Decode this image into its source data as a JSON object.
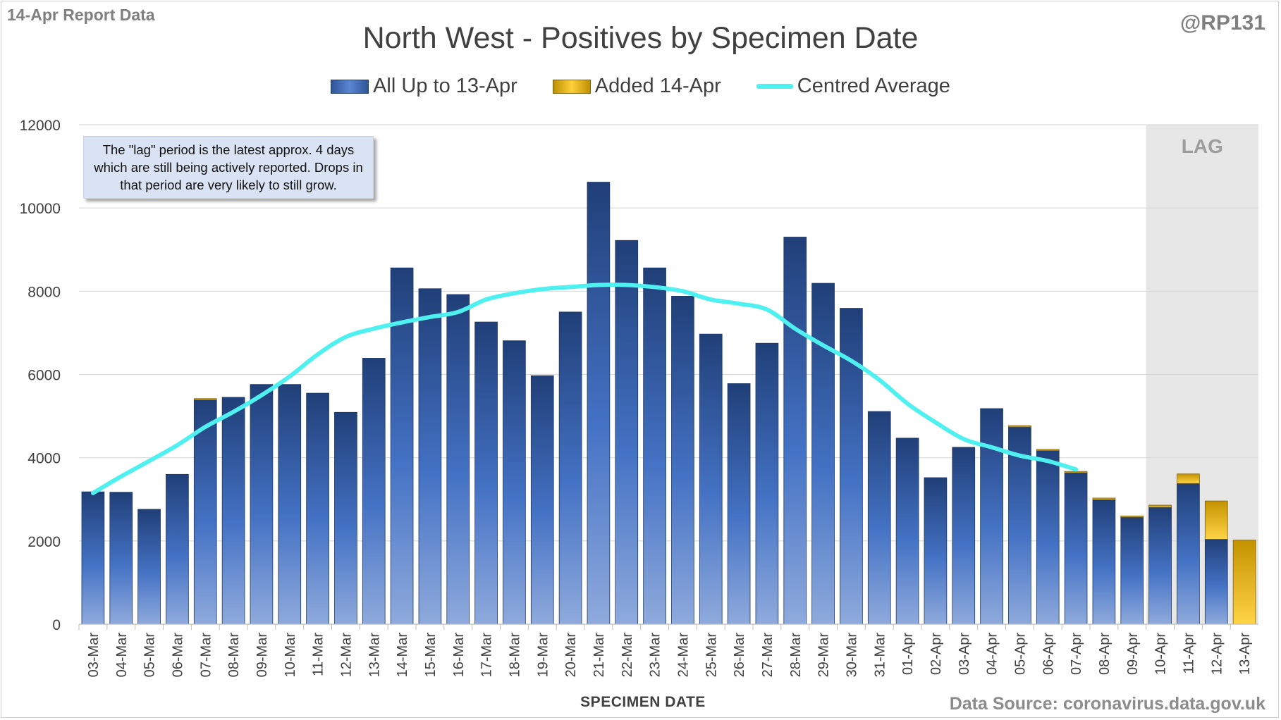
{
  "header": {
    "report_label": "14-Apr Report Data",
    "handle": "@RP131",
    "source": "Data Source: coronavirus.data.gov.uk"
  },
  "chart_data": {
    "type": "bar",
    "title": "North West - Positives by Specimen Date",
    "xlabel": "SPECIMEN DATE",
    "ylabel": "",
    "ylim": [
      0,
      12000
    ],
    "yticks": [
      0,
      2000,
      4000,
      6000,
      8000,
      10000,
      12000
    ],
    "grid": true,
    "legend_position": "top-center",
    "stacked": true,
    "lag_label": "LAG",
    "lag_categories": [
      "10-Apr",
      "11-Apr",
      "12-Apr",
      "13-Apr"
    ],
    "annotation": "The \"lag\" period is the latest approx. 4 days which are still being actively reported. Drops in that period are very likely to still grow.",
    "categories": [
      "03-Mar",
      "04-Mar",
      "05-Mar",
      "06-Mar",
      "07-Mar",
      "08-Mar",
      "09-Mar",
      "10-Mar",
      "11-Mar",
      "12-Mar",
      "13-Mar",
      "14-Mar",
      "15-Mar",
      "16-Mar",
      "17-Mar",
      "18-Mar",
      "19-Mar",
      "20-Mar",
      "21-Mar",
      "22-Mar",
      "23-Mar",
      "24-Mar",
      "25-Mar",
      "26-Mar",
      "27-Mar",
      "28-Mar",
      "29-Mar",
      "30-Mar",
      "31-Mar",
      "01-Apr",
      "02-Apr",
      "03-Apr",
      "04-Apr",
      "05-Apr",
      "06-Apr",
      "07-Apr",
      "08-Apr",
      "09-Apr",
      "10-Apr",
      "11-Apr",
      "12-Apr",
      "13-Apr"
    ],
    "series": [
      {
        "name": "All Up to 13-Apr",
        "color": "#2f5597",
        "values": [
          3180,
          3170,
          2760,
          3600,
          5390,
          5450,
          5760,
          5760,
          5550,
          5090,
          6390,
          8560,
          8060,
          7920,
          7260,
          6810,
          5970,
          7500,
          10620,
          9220,
          8560,
          7880,
          6970,
          5780,
          6750,
          9300,
          8190,
          7590,
          5110,
          4470,
          3520,
          4250,
          5180,
          4740,
          4170,
          3640,
          2990,
          2570,
          2810,
          3380,
          2040,
          0
        ]
      },
      {
        "name": "Added 14-Apr",
        "color": "#ffc000",
        "values": [
          0,
          0,
          0,
          0,
          30,
          0,
          0,
          0,
          0,
          0,
          0,
          0,
          0,
          0,
          0,
          0,
          0,
          0,
          0,
          0,
          0,
          0,
          0,
          0,
          0,
          0,
          0,
          0,
          0,
          0,
          0,
          0,
          0,
          30,
          30,
          30,
          40,
          30,
          50,
          230,
          920,
          2020
        ]
      },
      {
        "name": "Centred Average",
        "color": "#4ff0f0",
        "type": "line",
        "values": [
          3150,
          3550,
          3920,
          4300,
          4740,
          5100,
          5500,
          5950,
          6480,
          6900,
          7100,
          7250,
          7380,
          7500,
          7800,
          7950,
          8050,
          8100,
          8150,
          8150,
          8100,
          8000,
          7800,
          7700,
          7560,
          7100,
          6700,
          6330,
          5870,
          5300,
          4850,
          4450,
          4250,
          4050,
          3920,
          3720,
          null,
          null,
          null,
          null,
          null,
          null
        ]
      }
    ]
  }
}
